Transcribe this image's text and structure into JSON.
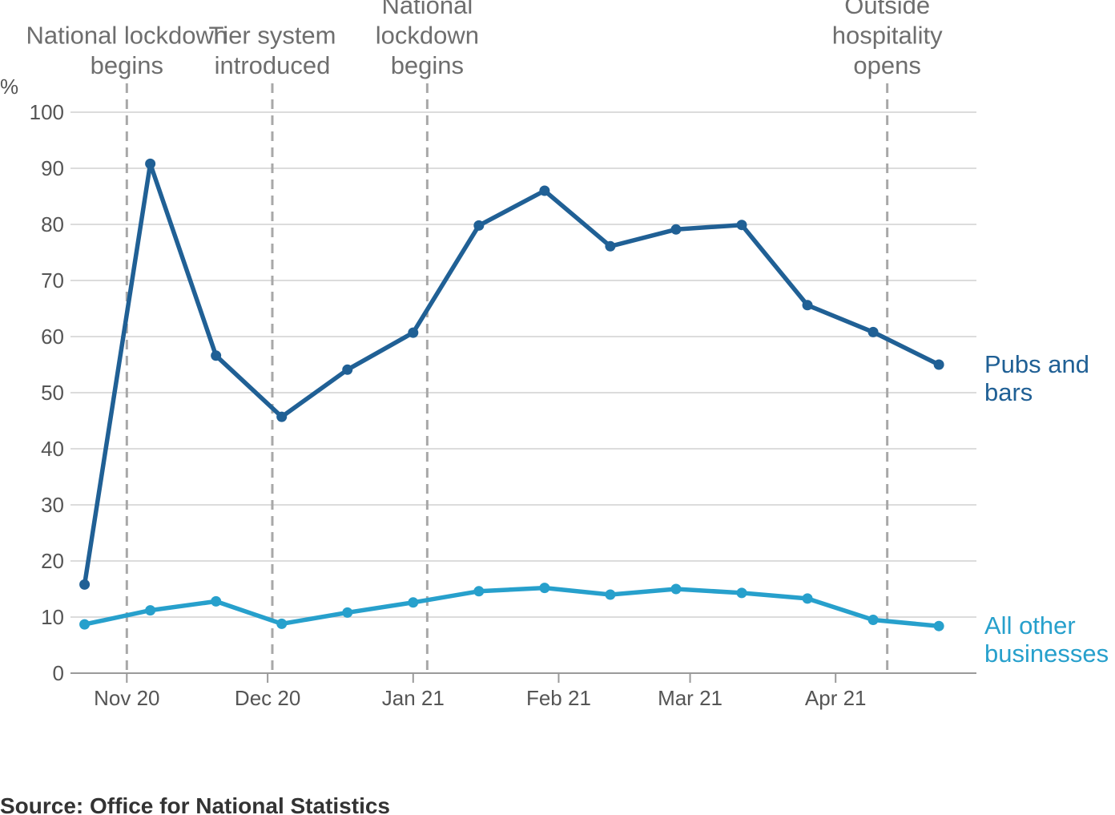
{
  "chart_data": {
    "type": "line",
    "ylabel": "%",
    "ylim": [
      0,
      100
    ],
    "yticks": [
      "0",
      "10",
      "20",
      "30",
      "40",
      "50",
      "60",
      "70",
      "80",
      "90",
      "100"
    ],
    "xlim": [
      "2020-10-20",
      "2021-05-01"
    ],
    "xticks": [
      {
        "label": "Nov 20",
        "date": "2020-11-01"
      },
      {
        "label": "Dec 20",
        "date": "2020-12-01"
      },
      {
        "label": "Jan 21",
        "date": "2021-01-01"
      },
      {
        "label": "Feb 21",
        "date": "2021-02-01"
      },
      {
        "label": "Mar 21",
        "date": "2021-03-01"
      },
      {
        "label": "Apr 21",
        "date": "2021-04-01"
      }
    ],
    "x": [
      "2020-10-23",
      "2020-11-06",
      "2020-11-20",
      "2020-12-04",
      "2020-12-18",
      "2021-01-01",
      "2021-01-15",
      "2021-01-29",
      "2021-02-12",
      "2021-02-26",
      "2021-03-12",
      "2021-03-26",
      "2021-04-09",
      "2021-04-23"
    ],
    "series": [
      {
        "name": "Pubs and bars",
        "label_lines": [
          "Pubs and",
          "bars"
        ],
        "color": "#206095",
        "values": [
          15.8,
          90.8,
          56.6,
          45.7,
          54.1,
          60.7,
          79.8,
          86.0,
          76.1,
          79.1,
          79.9,
          65.6,
          60.8,
          55.0
        ]
      },
      {
        "name": "All other businesses",
        "label_lines": [
          "All other",
          "businesses"
        ],
        "color": "#27a0cc",
        "values": [
          8.7,
          11.2,
          12.8,
          8.8,
          10.8,
          12.6,
          14.6,
          15.2,
          14.0,
          15.0,
          14.3,
          13.3,
          9.5,
          8.4
        ]
      }
    ],
    "events": [
      {
        "date": "2020-11-01",
        "lines": [
          "National lockdown",
          "begins"
        ]
      },
      {
        "date": "2020-12-02",
        "lines": [
          "Tier system",
          "introduced"
        ]
      },
      {
        "date": "2021-01-04",
        "lines": [
          "National",
          "lockdown",
          "begins"
        ]
      },
      {
        "date": "2021-04-12",
        "lines": [
          "Outside",
          "hospitality",
          "opens"
        ]
      }
    ],
    "grid": true,
    "legend": "inline-right"
  },
  "source": "Source: Office for National Statistics"
}
